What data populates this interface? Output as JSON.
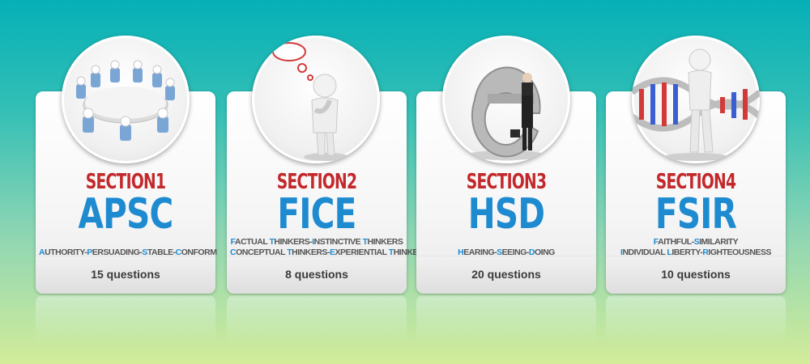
{
  "sections": [
    {
      "section": "SECTION1",
      "code": "APSC",
      "description_lines": [
        "Authority-Persuading-Stable-Conform"
      ],
      "questions": "15 questions",
      "image_icon": "round-table-meeting-icon"
    },
    {
      "section": "SECTION2",
      "code": "FICE",
      "description_lines": [
        "Factual Thinkers-Instinctive Thinkers",
        "Conceptual Thinkers-Experiential Thinkers"
      ],
      "questions": "8 questions",
      "image_icon": "thinking-person-icon"
    },
    {
      "section": "SECTION3",
      "code": "HSD",
      "description_lines": [
        "Hearing-Seeing-Doing"
      ],
      "questions": "20 questions",
      "image_icon": "e-letter-businessman-icon"
    },
    {
      "section": "SECTION4",
      "code": "FSIR",
      "description_lines": [
        "Faithful-Similarity",
        "Individual Liberty-Righteousness"
      ],
      "questions": "10 questions",
      "image_icon": "dna-helix-figure-icon"
    }
  ],
  "colors": {
    "section_label": "#c3282b",
    "code": "#1e8bd0",
    "initial_letter": "#1e8bd0",
    "background_top": "#05b0b7",
    "background_bottom": "#d2ec9a"
  }
}
